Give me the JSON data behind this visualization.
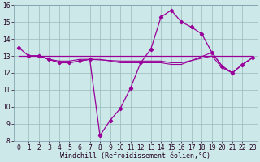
{
  "xlabel": "Windchill (Refroidissement éolien,°C)",
  "line1_y": [
    13.5,
    13.0,
    13.0,
    12.8,
    12.6,
    12.6,
    12.7,
    12.8,
    8.3,
    9.2,
    9.9,
    11.1,
    12.6,
    13.4,
    15.3,
    15.7,
    15.0,
    14.7,
    14.3,
    13.2,
    12.4,
    12.0,
    12.5,
    12.9
  ],
  "line_flat_y": 13.0,
  "line2_y": [
    13.0,
    13.0,
    12.8,
    12.6,
    12.6,
    12.7,
    12.8,
    12.8,
    12.6,
    12.6,
    12.6,
    12.6,
    12.6,
    12.5,
    12.5,
    13.2,
    12.4,
    12.0,
    12.5,
    12.9
  ],
  "line2_x": [
    1,
    2,
    3,
    4,
    5,
    6,
    7,
    8,
    10,
    11,
    12,
    13,
    14,
    15,
    16,
    19,
    20,
    21,
    22,
    23
  ],
  "line3_y": [
    13.0,
    13.0,
    12.8,
    12.7,
    12.7,
    12.8,
    12.8,
    12.7,
    12.7,
    12.7,
    12.7,
    12.7,
    12.6,
    12.6,
    13.0,
    12.3,
    12.0,
    12.5,
    12.9
  ],
  "line3_x": [
    1,
    2,
    3,
    4,
    5,
    6,
    7,
    10,
    11,
    12,
    13,
    14,
    15,
    16,
    19,
    20,
    21,
    22,
    23
  ],
  "line_color": "#990099",
  "bg_color": "#cce8e8",
  "grid_color": "#99bbbb",
  "xlim": [
    -0.5,
    23.5
  ],
  "ylim": [
    8,
    16
  ],
  "yticks": [
    8,
    9,
    10,
    11,
    12,
    13,
    14,
    15,
    16
  ],
  "xticks": [
    0,
    1,
    2,
    3,
    4,
    5,
    6,
    7,
    8,
    9,
    10,
    11,
    12,
    13,
    14,
    15,
    16,
    17,
    18,
    19,
    20,
    21,
    22,
    23
  ],
  "tick_fontsize": 5.5,
  "xlabel_fontsize": 6.0
}
